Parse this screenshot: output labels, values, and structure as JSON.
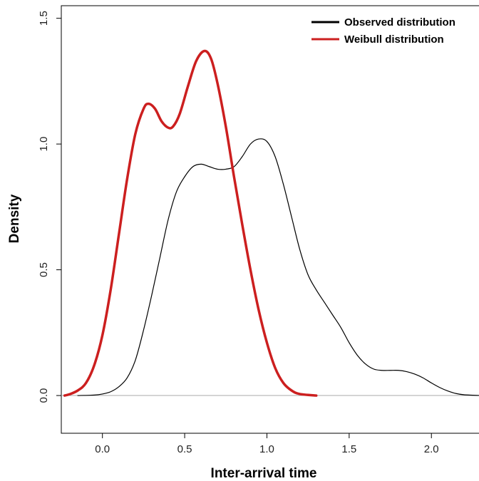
{
  "chart_data": {
    "type": "line",
    "xlabel": "Inter-arrival time",
    "ylabel": "Density",
    "xlim": [
      -0.25,
      2.35
    ],
    "ylim": [
      -0.15,
      1.55
    ],
    "xticks": [
      0.0,
      0.5,
      1.0,
      1.5,
      2.0
    ],
    "xtick_labels": [
      "0.0",
      "0.5",
      "1.0",
      "1.5",
      "2.0"
    ],
    "yticks": [
      0.0,
      0.5,
      1.0,
      1.5
    ],
    "ytick_labels": [
      "0.0",
      "0.5",
      "1.0",
      "1.5"
    ],
    "baseline": 0,
    "legend": "top-right",
    "series": [
      {
        "name": "Observed distribution",
        "color": "#000000",
        "points": [
          [
            -0.15,
            0.0
          ],
          [
            -0.05,
            0.002
          ],
          [
            0.0,
            0.006
          ],
          [
            0.05,
            0.015
          ],
          [
            0.1,
            0.035
          ],
          [
            0.15,
            0.07
          ],
          [
            0.2,
            0.14
          ],
          [
            0.25,
            0.26
          ],
          [
            0.3,
            0.4
          ],
          [
            0.35,
            0.55
          ],
          [
            0.4,
            0.7
          ],
          [
            0.45,
            0.81
          ],
          [
            0.5,
            0.87
          ],
          [
            0.55,
            0.91
          ],
          [
            0.6,
            0.92
          ],
          [
            0.65,
            0.91
          ],
          [
            0.7,
            0.9
          ],
          [
            0.75,
            0.9
          ],
          [
            0.8,
            0.91
          ],
          [
            0.85,
            0.95
          ],
          [
            0.9,
            1.0
          ],
          [
            0.95,
            1.02
          ],
          [
            1.0,
            1.01
          ],
          [
            1.05,
            0.95
          ],
          [
            1.1,
            0.84
          ],
          [
            1.15,
            0.71
          ],
          [
            1.2,
            0.58
          ],
          [
            1.25,
            0.48
          ],
          [
            1.3,
            0.42
          ],
          [
            1.35,
            0.37
          ],
          [
            1.4,
            0.32
          ],
          [
            1.45,
            0.27
          ],
          [
            1.5,
            0.21
          ],
          [
            1.55,
            0.16
          ],
          [
            1.6,
            0.125
          ],
          [
            1.65,
            0.105
          ],
          [
            1.7,
            0.1
          ],
          [
            1.75,
            0.1
          ],
          [
            1.8,
            0.1
          ],
          [
            1.85,
            0.095
          ],
          [
            1.9,
            0.085
          ],
          [
            1.95,
            0.07
          ],
          [
            2.0,
            0.05
          ],
          [
            2.05,
            0.032
          ],
          [
            2.1,
            0.018
          ],
          [
            2.15,
            0.008
          ],
          [
            2.2,
            0.003
          ],
          [
            2.3,
            0.0
          ]
        ]
      },
      {
        "name": "Weibull distribution",
        "color": "#cc1f1f",
        "points": [
          [
            -0.23,
            0.0
          ],
          [
            -0.2,
            0.005
          ],
          [
            -0.15,
            0.02
          ],
          [
            -0.1,
            0.05
          ],
          [
            -0.05,
            0.12
          ],
          [
            0.0,
            0.24
          ],
          [
            0.05,
            0.42
          ],
          [
            0.1,
            0.64
          ],
          [
            0.15,
            0.86
          ],
          [
            0.2,
            1.04
          ],
          [
            0.25,
            1.14
          ],
          [
            0.28,
            1.16
          ],
          [
            0.32,
            1.14
          ],
          [
            0.36,
            1.09
          ],
          [
            0.4,
            1.065
          ],
          [
            0.43,
            1.07
          ],
          [
            0.47,
            1.12
          ],
          [
            0.52,
            1.23
          ],
          [
            0.57,
            1.33
          ],
          [
            0.62,
            1.37
          ],
          [
            0.66,
            1.34
          ],
          [
            0.7,
            1.24
          ],
          [
            0.75,
            1.07
          ],
          [
            0.8,
            0.87
          ],
          [
            0.85,
            0.68
          ],
          [
            0.9,
            0.5
          ],
          [
            0.95,
            0.34
          ],
          [
            1.0,
            0.21
          ],
          [
            1.05,
            0.11
          ],
          [
            1.1,
            0.05
          ],
          [
            1.15,
            0.02
          ],
          [
            1.2,
            0.006
          ],
          [
            1.3,
            0.0
          ]
        ]
      }
    ]
  }
}
